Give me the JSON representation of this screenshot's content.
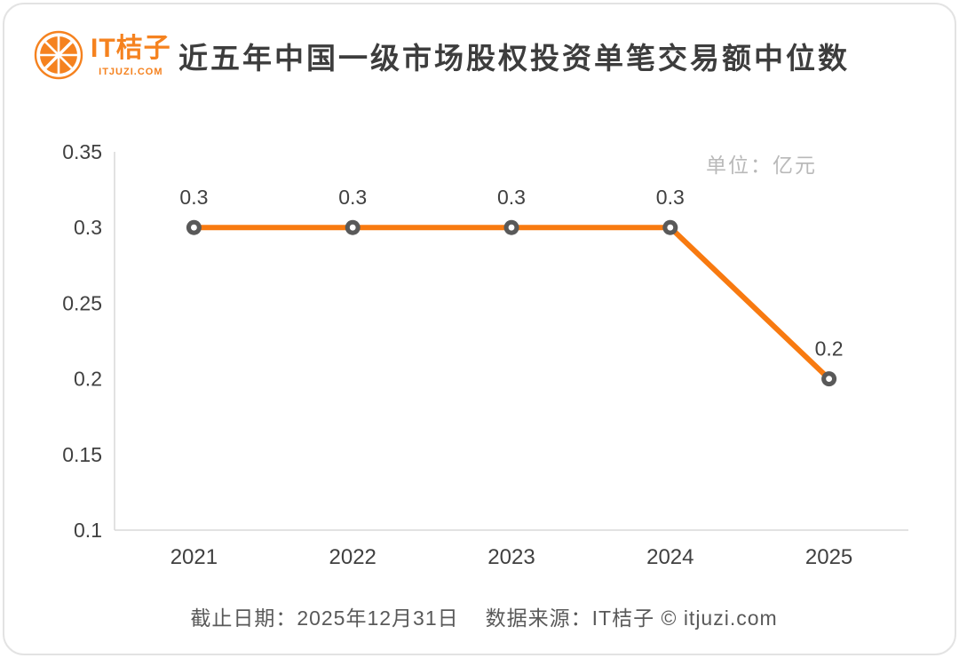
{
  "brand": {
    "logo_text": "IT桔子",
    "logo_sub": "ITJUZI.COM",
    "orange": "#F5821F"
  },
  "header": {
    "title": "近五年中国一级市场股权投资单笔交易额中位数"
  },
  "chart_data": {
    "type": "line",
    "title": "近五年中国一级市场股权投资单笔交易额中位数",
    "unit_label": "单位：亿元",
    "categories": [
      "2021",
      "2022",
      "2023",
      "2024",
      "2025"
    ],
    "values": [
      0.3,
      0.3,
      0.3,
      0.3,
      0.2
    ],
    "data_labels": [
      "0.3",
      "0.3",
      "0.3",
      "0.3",
      "0.2"
    ],
    "ylim": [
      0.1,
      0.35
    ],
    "yticks": [
      0.35,
      0.3,
      0.25,
      0.2,
      0.15,
      0.1
    ],
    "ytick_labels": [
      "0.35",
      "0.3",
      "0.25",
      "0.2",
      "0.15",
      "0.1"
    ],
    "grid": false,
    "legend": "none",
    "line_color": "#F87A10",
    "line_width": 6,
    "marker_color": "#595959",
    "marker_hole_color": "#ffffff",
    "axis_color": "#d9d9d9",
    "tick_label_color": "#404040",
    "data_label_color": "#404040"
  },
  "footer": {
    "deadline": "截止日期：2025年12月31日",
    "source": "数据来源：IT桔子 © itjuzi.com"
  }
}
